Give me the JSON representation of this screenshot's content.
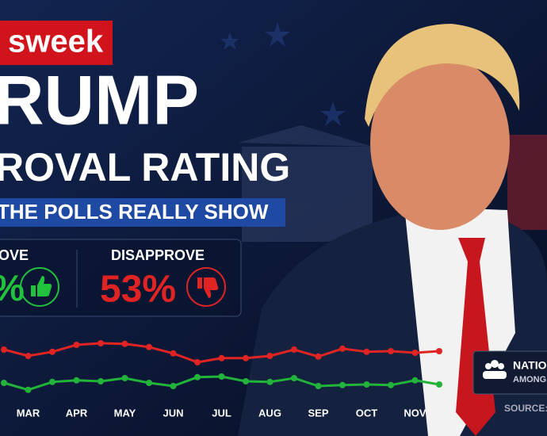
{
  "header": {
    "brand": "sweek",
    "title": "RUMP",
    "subtitle": "ROVAL RATING",
    "banner": "THE POLLS REALLY SHOW"
  },
  "stats": {
    "approve_label": "OVE",
    "approve_value": "%",
    "disapprove_label": "DISAPPROVE",
    "disapprove_value": "53%"
  },
  "chart_data": {
    "type": "line",
    "categories": [
      null,
      "MAR",
      null,
      "APR",
      null,
      "MAY",
      null,
      "JUN",
      null,
      "JUL",
      null,
      "AUG",
      null,
      "SEP",
      null,
      "OCT",
      null,
      "NOV",
      null
    ],
    "series": [
      {
        "color": "#e02424",
        "values": [
          53.5,
          51.5,
          52.8,
          55,
          55.5,
          55.3,
          54.3,
          52.3,
          49.5,
          50.8,
          50.8,
          51.5,
          53.5,
          51.3,
          53.8,
          52.8,
          53,
          52.5,
          53
        ]
      },
      {
        "color": "#22b33a",
        "values": [
          43,
          40.8,
          43.3,
          43.8,
          43.5,
          44.5,
          43,
          42,
          44.8,
          45,
          43.5,
          43.3,
          44.5,
          42,
          42.3,
          42.5,
          42.3,
          43.8,
          42.5
        ]
      }
    ],
    "ylim": [
      40,
      60
    ]
  },
  "badge": {
    "line1": "NATIO",
    "line2": "AMONG",
    "source": "SOURCE:"
  }
}
